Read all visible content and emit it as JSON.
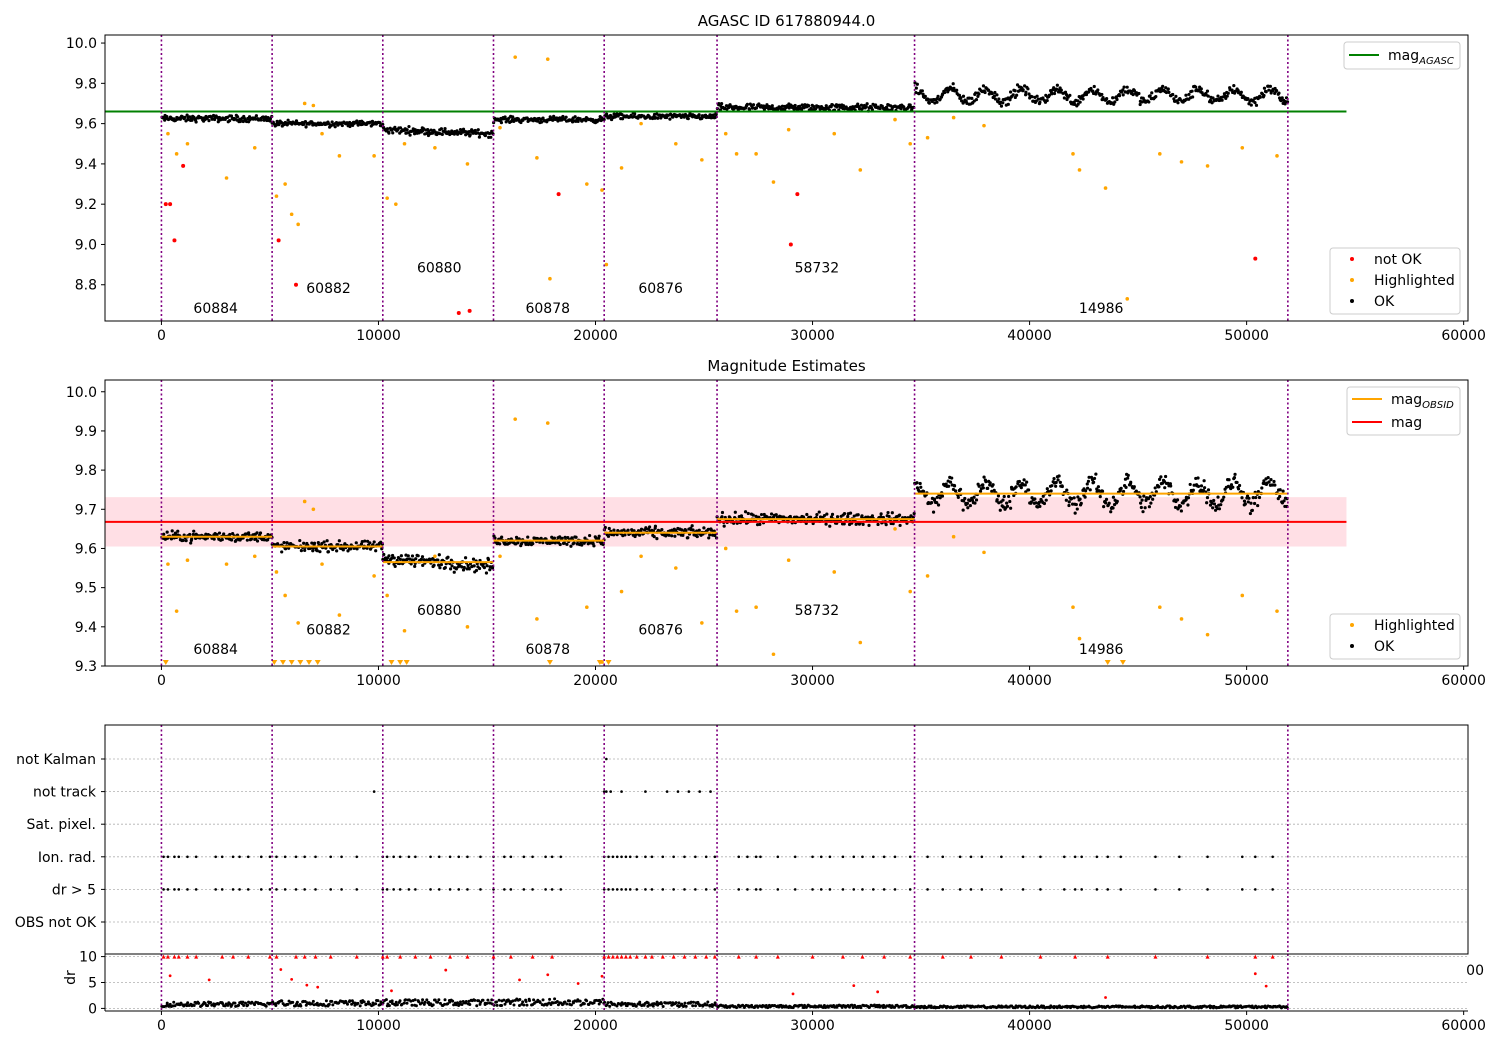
{
  "chart_data": [
    {
      "type": "scatter",
      "title": "AGASC ID 617880944.0",
      "xlim": [
        -2600,
        60200
      ],
      "ylim": [
        8.62,
        10.04
      ],
      "xticks": [
        0,
        10000,
        20000,
        30000,
        40000,
        50000,
        60000
      ],
      "yticks": [
        8.8,
        9.0,
        9.2,
        9.4,
        9.6,
        9.8,
        10.0
      ],
      "ytick_labels": [
        "8.8",
        "9.0",
        "9.2",
        "9.4",
        "9.6",
        "9.8",
        "10.0"
      ],
      "grid": false,
      "legend": {
        "placement_upper": "top-right",
        "upper_entries": [
          {
            "label": "mag",
            "subscript": "AGASC",
            "color": "#008000"
          }
        ],
        "placement_lower": "bottom-right",
        "lower_entries": [
          {
            "label": "not OK",
            "color": "#ff0000"
          },
          {
            "label": "Highlighted",
            "color": "#ffa500"
          },
          {
            "label": "OK",
            "color": "#000000"
          }
        ]
      },
      "mag_agasc": 9.66,
      "mag_agasc_xrange": [
        -2600,
        54600
      ],
      "segment_boundaries": [
        0,
        5100,
        10200,
        15300,
        20400,
        25600,
        34700,
        51900
      ],
      "obsids": [
        {
          "label": "60884",
          "x": 2500,
          "y": 8.66
        },
        {
          "label": "60882",
          "x": 7700,
          "y": 8.76
        },
        {
          "label": "60880",
          "x": 12800,
          "y": 8.86
        },
        {
          "label": "60878",
          "x": 17800,
          "y": 8.66
        },
        {
          "label": "60876",
          "x": 23000,
          "y": 8.76
        },
        {
          "label": "58732",
          "x": 30200,
          "y": 8.86
        },
        {
          "label": "14986",
          "x": 43300,
          "y": 8.66
        }
      ],
      "segment_means": [
        9.625,
        9.6,
        9.56,
        9.62,
        9.635,
        9.68,
        9.74
      ],
      "segment_spread": [
        0.022,
        0.02,
        0.025,
        0.02,
        0.02,
        0.025,
        0.035
      ],
      "not_ok": [
        [
          200,
          9.2
        ],
        [
          400,
          9.2
        ],
        [
          600,
          9.02
        ],
        [
          1000,
          9.39
        ],
        [
          6200,
          8.8
        ],
        [
          5400,
          9.02
        ],
        [
          13700,
          8.66
        ],
        [
          14200,
          8.67
        ],
        [
          18300,
          9.25
        ],
        [
          29000,
          9.0
        ],
        [
          29300,
          9.25
        ],
        [
          50400,
          8.93
        ]
      ],
      "highlighted_sample": [
        [
          300,
          9.55
        ],
        [
          700,
          9.45
        ],
        [
          1200,
          9.5
        ],
        [
          3000,
          9.33
        ],
        [
          4300,
          9.48
        ],
        [
          5300,
          9.24
        ],
        [
          5700,
          9.3
        ],
        [
          6000,
          9.15
        ],
        [
          6300,
          9.1
        ],
        [
          6600,
          9.7
        ],
        [
          7000,
          9.69
        ],
        [
          7400,
          9.55
        ],
        [
          8200,
          9.44
        ],
        [
          9800,
          9.44
        ],
        [
          10400,
          9.23
        ],
        [
          10800,
          9.2
        ],
        [
          11200,
          9.5
        ],
        [
          12600,
          9.48
        ],
        [
          14100,
          9.4
        ],
        [
          15600,
          9.58
        ],
        [
          16300,
          9.93
        ],
        [
          17300,
          9.43
        ],
        [
          17800,
          9.92
        ],
        [
          17900,
          8.83
        ],
        [
          19600,
          9.3
        ],
        [
          20300,
          9.27
        ],
        [
          20500,
          8.9
        ],
        [
          21200,
          9.38
        ],
        [
          22100,
          9.6
        ],
        [
          23700,
          9.5
        ],
        [
          24900,
          9.42
        ],
        [
          26000,
          9.55
        ],
        [
          26500,
          9.45
        ],
        [
          27400,
          9.45
        ],
        [
          28200,
          9.31
        ],
        [
          28900,
          9.57
        ],
        [
          31000,
          9.55
        ],
        [
          32200,
          9.37
        ],
        [
          33800,
          9.62
        ],
        [
          34500,
          9.5
        ],
        [
          35300,
          9.53
        ],
        [
          36500,
          9.63
        ],
        [
          37900,
          9.59
        ],
        [
          42000,
          9.45
        ],
        [
          42300,
          9.37
        ],
        [
          43500,
          9.28
        ],
        [
          46000,
          9.45
        ],
        [
          47000,
          9.41
        ],
        [
          48200,
          9.39
        ],
        [
          49800,
          9.48
        ],
        [
          51400,
          9.44
        ],
        [
          44500,
          8.73
        ]
      ]
    },
    {
      "type": "scatter",
      "title": "Magnitude Estimates",
      "xlim": [
        -2600,
        60200
      ],
      "ylim": [
        9.3,
        10.03
      ],
      "xticks": [
        0,
        10000,
        20000,
        30000,
        40000,
        50000,
        60000
      ],
      "yticks": [
        9.3,
        9.4,
        9.5,
        9.6,
        9.7,
        9.8,
        9.9,
        10.0
      ],
      "ytick_labels": [
        "9.3",
        "9.4",
        "9.5",
        "9.6",
        "9.7",
        "9.8",
        "9.9",
        "10.0"
      ],
      "grid": false,
      "legend": {
        "placement_upper": "top-right",
        "upper_entries": [
          {
            "label": "mag",
            "subscript": "OBSID",
            "color": "#ffa500"
          },
          {
            "label": "mag",
            "subscript": "",
            "color": "#ff0000"
          }
        ],
        "placement_lower": "bottom-right",
        "lower_entries": [
          {
            "label": "Highlighted",
            "color": "#ffa500"
          },
          {
            "label": "OK",
            "color": "#000000"
          }
        ]
      },
      "mag": 9.668,
      "mag_band": [
        9.605,
        9.731
      ],
      "mag_xrange": [
        -2600,
        54600
      ],
      "segment_boundaries": [
        0,
        5100,
        10200,
        15300,
        20400,
        25600,
        34700,
        51900
      ],
      "obsids": [
        {
          "label": "60884",
          "x": 2500,
          "y": 9.33
        },
        {
          "label": "60882",
          "x": 7700,
          "y": 9.38
        },
        {
          "label": "60880",
          "x": 12800,
          "y": 9.43
        },
        {
          "label": "60878",
          "x": 17800,
          "y": 9.33
        },
        {
          "label": "60876",
          "x": 23000,
          "y": 9.38
        },
        {
          "label": "58732",
          "x": 30200,
          "y": 9.43
        },
        {
          "label": "14986",
          "x": 43300,
          "y": 9.33
        }
      ],
      "mag_obsid": [
        9.63,
        9.605,
        9.565,
        9.62,
        9.64,
        9.675,
        9.74
      ],
      "segment_spread": [
        0.018,
        0.018,
        0.025,
        0.018,
        0.02,
        0.022,
        0.032
      ],
      "highlighted_sample": [
        [
          300,
          9.56
        ],
        [
          700,
          9.44
        ],
        [
          1200,
          9.57
        ],
        [
          3000,
          9.56
        ],
        [
          4300,
          9.58
        ],
        [
          5300,
          9.54
        ],
        [
          5700,
          9.48
        ],
        [
          6300,
          9.41
        ],
        [
          6600,
          9.72
        ],
        [
          7000,
          9.7
        ],
        [
          7400,
          9.56
        ],
        [
          8200,
          9.43
        ],
        [
          9800,
          9.53
        ],
        [
          10400,
          9.48
        ],
        [
          11200,
          9.39
        ],
        [
          12600,
          9.58
        ],
        [
          14100,
          9.4
        ],
        [
          15600,
          9.58
        ],
        [
          16300,
          9.93
        ],
        [
          17300,
          9.42
        ],
        [
          17800,
          9.92
        ],
        [
          19600,
          9.45
        ],
        [
          20300,
          9.31
        ],
        [
          21200,
          9.49
        ],
        [
          22100,
          9.58
        ],
        [
          23700,
          9.55
        ],
        [
          24900,
          9.41
        ],
        [
          26000,
          9.6
        ],
        [
          26500,
          9.44
        ],
        [
          27400,
          9.45
        ],
        [
          28200,
          9.33
        ],
        [
          28900,
          9.57
        ],
        [
          31000,
          9.54
        ],
        [
          32200,
          9.36
        ],
        [
          33800,
          9.65
        ],
        [
          34500,
          9.49
        ],
        [
          35300,
          9.53
        ],
        [
          36500,
          9.63
        ],
        [
          37900,
          9.59
        ],
        [
          42000,
          9.45
        ],
        [
          42300,
          9.37
        ],
        [
          46000,
          9.45
        ],
        [
          47000,
          9.42
        ],
        [
          48200,
          9.38
        ],
        [
          49800,
          9.48
        ],
        [
          51400,
          9.44
        ]
      ],
      "floor_markers": [
        200,
        5200,
        5600,
        6000,
        6400,
        6800,
        7200,
        10600,
        11000,
        11300,
        17900,
        20200,
        20600,
        43600,
        44300
      ]
    },
    {
      "type": "scatter",
      "title": "",
      "xlim": [
        -2600,
        60200
      ],
      "categories": [
        "not Kalman",
        "not track",
        "Sat. pixel.",
        "Ion. rad.",
        "dr > 5",
        "OBS not OK"
      ],
      "segment_boundaries": [
        0,
        5100,
        10200,
        15300,
        20400,
        25600,
        34700,
        51900
      ],
      "flag_points": {
        "not Kalman": [
          20500
        ],
        "not track": [
          9800,
          20400,
          20500,
          20700,
          21200,
          22300,
          23300,
          23800,
          24300,
          24800,
          25300
        ],
        "Ion. rad.": [
          100,
          300,
          600,
          800,
          1200,
          1600,
          2500,
          2800,
          3300,
          3600,
          4000,
          4600,
          5000,
          5300,
          5700,
          6200,
          6600,
          7100,
          7800,
          8300,
          9000,
          10200,
          10400,
          10700,
          11000,
          11400,
          11700,
          12400,
          12800,
          13300,
          13700,
          14100,
          14700,
          15300,
          15800,
          16100,
          16700,
          17100,
          17700,
          18000,
          18400,
          20400,
          20600,
          20800,
          21000,
          21200,
          21400,
          21600,
          21900,
          22300,
          22600,
          23100,
          23600,
          24100,
          24600,
          25100,
          25500,
          26600,
          27000,
          27400,
          27600,
          28400,
          29200,
          30000,
          30400,
          30800,
          31400,
          31900,
          32300,
          32800,
          33300,
          33800,
          34500,
          35300,
          36000,
          36800,
          37300,
          37800,
          38700,
          39700,
          40500,
          41600,
          42100,
          42400,
          43100,
          43600,
          44200,
          45800,
          46900,
          48200,
          49800,
          50400,
          51200
        ],
        "dr > 5": [
          100,
          300,
          600,
          800,
          1200,
          1600,
          2500,
          2800,
          3300,
          3600,
          4000,
          4600,
          5000,
          5300,
          5700,
          6200,
          6600,
          7100,
          7800,
          8300,
          9000,
          10200,
          10400,
          10700,
          11000,
          11400,
          11700,
          12400,
          12800,
          13300,
          13700,
          14100,
          14700,
          15300,
          15800,
          16100,
          16700,
          17100,
          17700,
          18000,
          18400,
          20400,
          20600,
          20800,
          21000,
          21200,
          21400,
          21600,
          21900,
          22300,
          22600,
          23100,
          23600,
          24100,
          24600,
          25100,
          25500,
          26600,
          27000,
          27400,
          27600,
          28400,
          29200,
          30000,
          30400,
          30800,
          31400,
          31900,
          32300,
          32800,
          33300,
          33800,
          34500,
          35300,
          36000,
          36800,
          37300,
          37800,
          38700,
          39700,
          40500,
          41600,
          42100,
          42400,
          43100,
          43600,
          44200,
          45800,
          46900,
          48200,
          49800,
          50400,
          51200
        ],
        "Sat. pixel.": [],
        "OBS not OK": []
      }
    },
    {
      "type": "scatter",
      "title": "",
      "ylabel": "dr",
      "xlim": [
        -2600,
        60200
      ],
      "ylim": [
        -0.5,
        10.5
      ],
      "xticks": [
        0,
        10000,
        20000,
        30000,
        40000,
        50000,
        60000
      ],
      "yticks": [
        0,
        5,
        10
      ],
      "ytick_labels": [
        "0",
        "5",
        "10"
      ],
      "clipped_tick_label": "00",
      "segment_boundaries": [
        0,
        5100,
        10200,
        15300,
        20400,
        25600,
        34700,
        51900
      ],
      "dr_level": [
        0.9,
        1.1,
        1.2,
        1.3,
        0.9,
        0.5,
        0.4
      ],
      "red_points_at_top": [
        100,
        300,
        600,
        800,
        1200,
        1600,
        2800,
        3300,
        4000,
        5000,
        5300,
        6200,
        6600,
        7100,
        7800,
        9000,
        10200,
        10400,
        11000,
        11700,
        12400,
        13300,
        14100,
        15300,
        16100,
        17100,
        18000,
        20400,
        20600,
        20800,
        21000,
        21200,
        21400,
        21600,
        21900,
        22300,
        22600,
        23100,
        23600,
        24100,
        24600,
        25100,
        25500,
        26600,
        27400,
        28400,
        30000,
        31400,
        32300,
        33300,
        34500,
        36000,
        37300,
        38700,
        40500,
        42100,
        43600,
        45800,
        48200,
        50400,
        51200
      ],
      "red_points_mid": [
        [
          400,
          6.3
        ],
        [
          2200,
          5.5
        ],
        [
          5500,
          7.5
        ],
        [
          6000,
          5.6
        ],
        [
          6700,
          4.5
        ],
        [
          7200,
          4.1
        ],
        [
          10600,
          3.4
        ],
        [
          13100,
          7.4
        ],
        [
          16500,
          5.5
        ],
        [
          17800,
          6.5
        ],
        [
          19200,
          4.8
        ],
        [
          20300,
          6.2
        ],
        [
          29100,
          2.8
        ],
        [
          31900,
          4.4
        ],
        [
          33000,
          3.2
        ],
        [
          43500,
          2.1
        ],
        [
          50400,
          6.7
        ],
        [
          50900,
          4.3
        ]
      ]
    }
  ],
  "colors": {
    "ok": "#000000",
    "highlighted": "#ffa500",
    "not_ok": "#ff0000",
    "agasc_line": "#008000",
    "mag_line": "#ff0000",
    "mag_band": "#ffc0cb",
    "boundary": "#800080"
  }
}
